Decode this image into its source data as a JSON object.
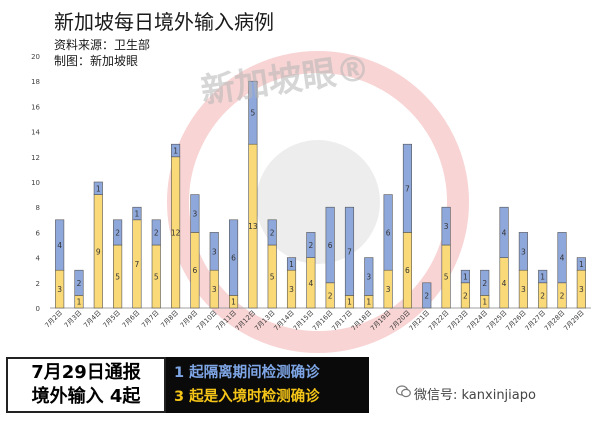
{
  "header": {
    "title": "新加坡每日境外输入病例",
    "source": "资料来源：卫生部",
    "made_by": "制图：新加坡眼"
  },
  "watermark": "新加坡眼®",
  "report_box": {
    "line1": "7月29日通报",
    "line2": "境外输入 4起"
  },
  "note_box": {
    "line1": "1 起隔离期间检测确诊",
    "line2": "3 起是入境时检测确诊",
    "line1_color": "#7ea6e6",
    "line2_color": "#f5c518"
  },
  "credit": {
    "text": "微信号: kanxinjiapo",
    "icon": "wechat-icon"
  },
  "colors": {
    "border_crossing": "#fad978",
    "quarantine": "#8fa8dc",
    "axis": "#a0a0a0",
    "gridline": "#e0e0e0"
  },
  "chart_data": {
    "type": "bar",
    "stacked": true,
    "title": "新加坡每日境外输入病例",
    "ylim": [
      0,
      20
    ],
    "yticks": [
      0,
      2,
      4,
      6,
      8,
      10,
      12,
      14,
      16,
      18,
      20
    ],
    "grid": false,
    "categories": [
      "7月2日",
      "7月3日",
      "7月4日",
      "7月5日",
      "7月6日",
      "7月7日",
      "7月8日",
      "7月9日",
      "7月10日",
      "7月11日",
      "7月12日",
      "7月13日",
      "7月14日",
      "7月15日",
      "7月16日",
      "7月17日",
      "7月18日",
      "7月19日",
      "7月20日",
      "7月21日",
      "7月22日",
      "7月23日",
      "7月24日",
      "7月25日",
      "7月26日",
      "7月27日",
      "7月28日",
      "7月29日"
    ],
    "series": [
      {
        "values": [
          3,
          1,
          9,
          5,
          7,
          5,
          12,
          6,
          3,
          1,
          13,
          5,
          3,
          4,
          2,
          1,
          1,
          3,
          6,
          0,
          5,
          2,
          1,
          4,
          3,
          2,
          2,
          3
        ]
      },
      {
        "values": [
          4,
          2,
          1,
          2,
          1,
          2,
          1,
          3,
          3,
          6,
          5,
          2,
          1,
          2,
          6,
          7,
          3,
          6,
          7,
          2,
          3,
          1,
          2,
          4,
          3,
          1,
          4,
          1
        ]
      }
    ]
  }
}
